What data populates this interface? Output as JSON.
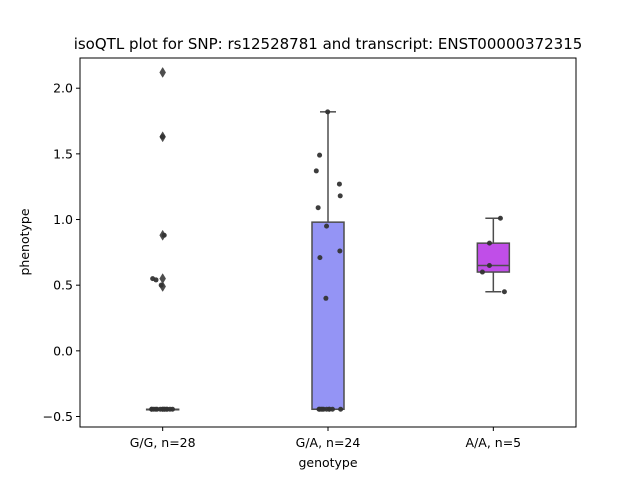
{
  "chart_data": {
    "type": "box",
    "title": "isoQTL plot for SNP: rs12528781 and transcript: ENST00000372315",
    "xlabel": "genotype",
    "ylabel": "phenotype",
    "ylim": [
      -0.58,
      2.23
    ],
    "yticks": [
      {
        "value": -0.5,
        "label": "−0.5"
      },
      {
        "value": 0.0,
        "label": "0.0"
      },
      {
        "value": 0.5,
        "label": "0.5"
      },
      {
        "value": 1.0,
        "label": "1.0"
      },
      {
        "value": 1.5,
        "label": "1.5"
      },
      {
        "value": 2.0,
        "label": "2.0"
      }
    ],
    "grid": false,
    "categories": [
      "G/G, n=28",
      "G/A, n=24",
      "A/A, n=5"
    ],
    "boxes": [
      {
        "category": "G/G, n=28",
        "color": "#6b6bd6",
        "q1": -0.445,
        "median": -0.445,
        "q3": -0.445,
        "whisker_low": -0.445,
        "whisker_high": -0.445,
        "outliers": [
          2.12,
          1.63,
          0.88,
          0.55,
          0.49
        ],
        "points": [
          1.63,
          0.88,
          0.55,
          0.54,
          0.5,
          -0.445,
          -0.445,
          -0.445,
          -0.445,
          -0.445,
          -0.445,
          -0.445,
          -0.445,
          -0.445,
          -0.445,
          -0.445,
          -0.445,
          -0.445,
          -0.445
        ]
      },
      {
        "category": "G/A, n=24",
        "color": "#9494f5",
        "q1": -0.445,
        "median": -0.445,
        "q3": 0.98,
        "whisker_low": -0.445,
        "whisker_high": 1.82,
        "outliers": [],
        "points": [
          1.82,
          1.49,
          1.37,
          1.27,
          1.18,
          1.09,
          0.95,
          0.76,
          0.71,
          0.4,
          -0.445,
          -0.445,
          -0.445,
          -0.445,
          -0.445,
          -0.445,
          -0.445,
          -0.445,
          -0.445,
          -0.445
        ]
      },
      {
        "category": "A/A, n=5",
        "color": "#c04ee8",
        "q1": 0.6,
        "median": 0.65,
        "q3": 0.82,
        "whisker_low": 0.45,
        "whisker_high": 1.01,
        "outliers": [],
        "points": [
          1.01,
          0.82,
          0.65,
          0.6,
          0.45
        ]
      }
    ]
  }
}
